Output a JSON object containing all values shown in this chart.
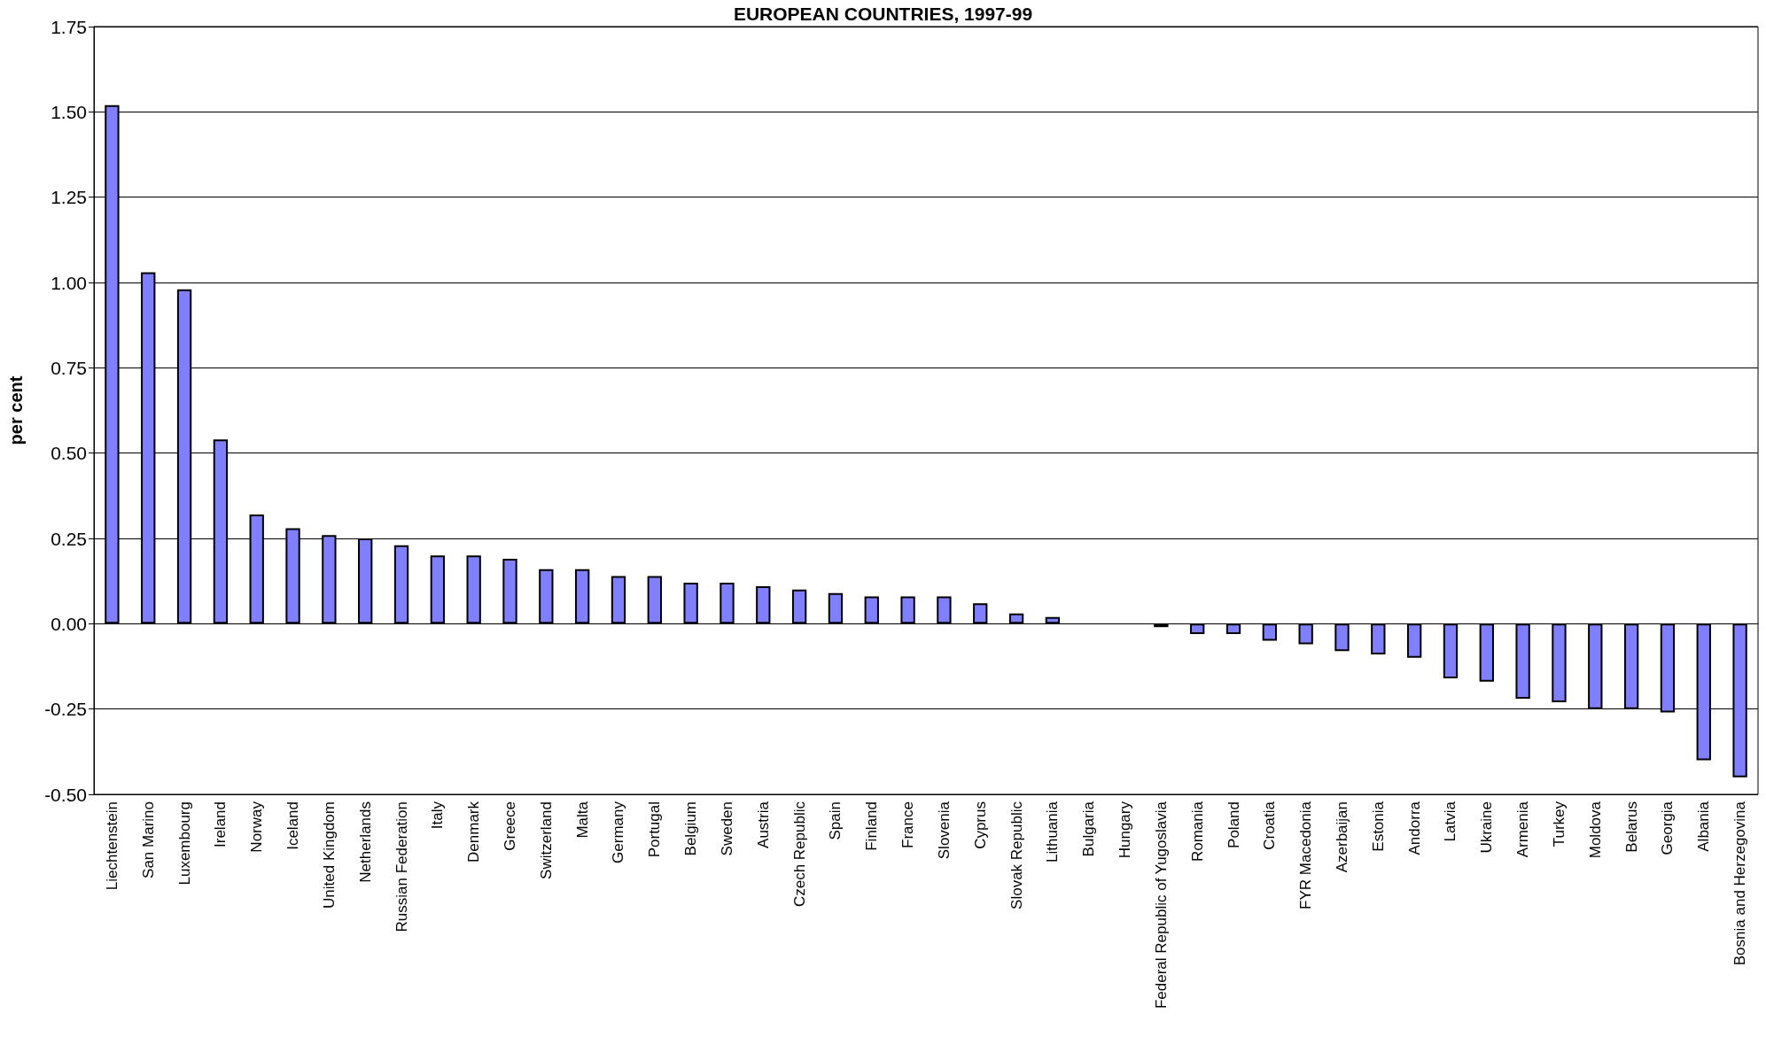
{
  "chart_data": {
    "type": "bar",
    "title": "EUROPEAN COUNTRIES, 1997-99",
    "ylabel": "per cent",
    "categories": [
      "Liechtenstein",
      "San Marino",
      "Luxembourg",
      "Ireland",
      "Norway",
      "Iceland",
      "United Kingdom",
      "Netherlands",
      "Russian Federation",
      "Italy",
      "Denmark",
      "Greece",
      "Switzerland",
      "Malta",
      "Germany",
      "Portugal",
      "Belgium",
      "Sweden",
      "Austria",
      "Czech Republic",
      "Spain",
      "Finland",
      "France",
      "Slovenia",
      "Cyprus",
      "Slovak Republic",
      "Lithuania",
      "Bulgaria",
      "Hungary",
      "Federal Republic of Yugoslavia",
      "Romania",
      "Poland",
      "Croatia",
      "FYR Macedonia",
      "Azerbaijan",
      "Estonia",
      "Andorra",
      "Latvia",
      "Ukraine",
      "Armenia",
      "Turkey",
      "Moldova",
      "Belarus",
      "Georgia",
      "Albania",
      "Bosnia and Herzegovina"
    ],
    "values": [
      1.52,
      1.03,
      0.98,
      0.54,
      0.32,
      0.28,
      0.26,
      0.25,
      0.23,
      0.2,
      0.2,
      0.19,
      0.16,
      0.16,
      0.14,
      0.14,
      0.12,
      0.12,
      0.11,
      0.1,
      0.09,
      0.08,
      0.08,
      0.08,
      0.06,
      0.03,
      0.02,
      null,
      null,
      -0.01,
      -0.03,
      -0.03,
      -0.05,
      -0.06,
      -0.08,
      -0.09,
      -0.1,
      -0.16,
      -0.17,
      -0.22,
      -0.23,
      -0.25,
      -0.25,
      -0.26,
      -0.4,
      -0.45
    ],
    "color": "#8080ff",
    "ylim": [
      -0.5,
      1.75
    ],
    "yticks": [
      {
        "value": -0.5,
        "label": "-0.50"
      },
      {
        "value": -0.25,
        "label": "-0.25"
      },
      {
        "value": 0,
        "label": "0.00"
      },
      {
        "value": 0.25,
        "label": "0.25"
      },
      {
        "value": 0.5,
        "label": "0.50"
      },
      {
        "value": 0.75,
        "label": "0.75"
      },
      {
        "value": 1,
        "label": "1.00"
      },
      {
        "value": 1.25,
        "label": "1.25"
      },
      {
        "value": 1.5,
        "label": "1.50"
      },
      {
        "value": 1.75,
        "label": "1.75"
      }
    ],
    "grid": "y"
  }
}
